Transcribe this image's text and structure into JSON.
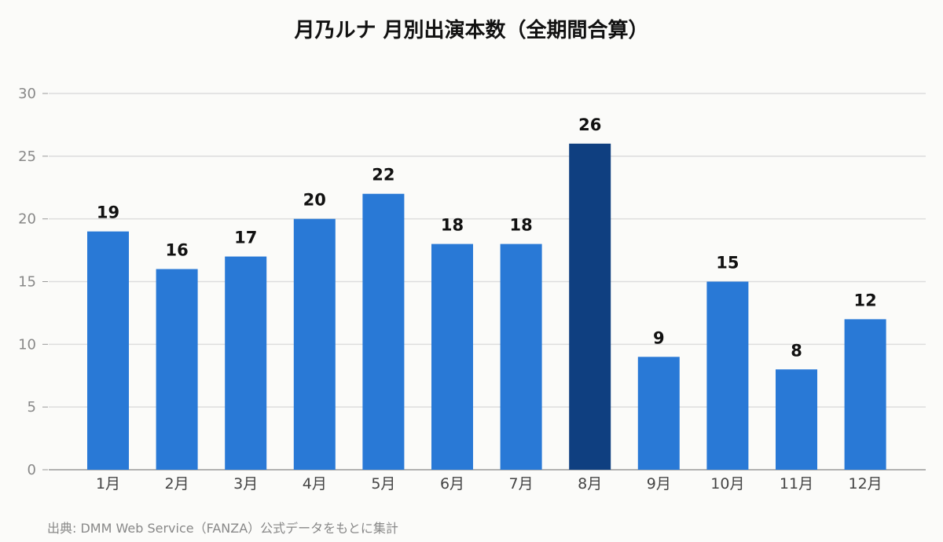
{
  "chart_data": {
    "type": "bar",
    "title": "月乃ルナ 月別出演本数（全期間合算）",
    "categories": [
      "1月",
      "2月",
      "3月",
      "4月",
      "5月",
      "6月",
      "7月",
      "8月",
      "9月",
      "10月",
      "11月",
      "12月"
    ],
    "values": [
      19,
      16,
      17,
      20,
      22,
      18,
      18,
      26,
      9,
      15,
      8,
      12
    ],
    "ylim": [
      0,
      30
    ],
    "yticks": [
      0,
      5,
      10,
      15,
      20,
      25,
      30
    ],
    "grid": true,
    "legend": "none",
    "highlight_index": 7,
    "colors": {
      "bar": "#2979d6",
      "highlight": "#0f3f80",
      "grid": "#dddddd",
      "axis": "#999999"
    }
  },
  "source": "出典: DMM Web Service（FANZA）公式データをもとに集計"
}
